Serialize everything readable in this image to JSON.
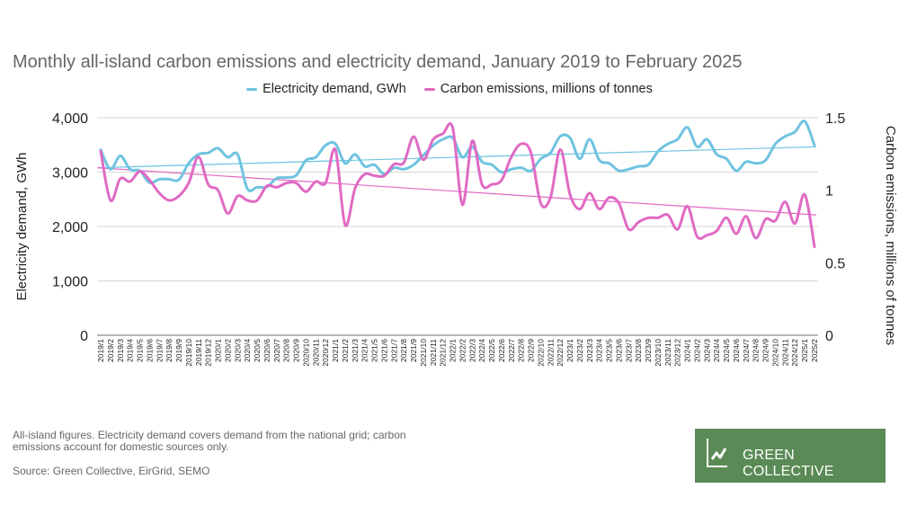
{
  "chart_data": {
    "type": "line",
    "title": "Monthly all-island carbon emissions and electricity demand, January 2019 to February 2025",
    "ylabel_left": "Electricity demand, GWh",
    "ylabel_right": "Carbon emissions, millions of tonnes",
    "ylim_left": [
      0,
      4000
    ],
    "ylim_right": [
      0,
      1.5
    ],
    "yticks_left": [
      "0",
      "1,000",
      "2,000",
      "3,000",
      "4,000"
    ],
    "yticks_right": [
      "0",
      "0.5",
      "1",
      "1.5"
    ],
    "grid": true,
    "legend_position": "top",
    "series": [
      {
        "name": "Electricity demand, GWh",
        "axis": "left",
        "color": "#6ec3e0",
        "values": [
          3410,
          3053,
          3300,
          3053,
          3025,
          2805,
          2870,
          2870,
          2860,
          3162,
          3327,
          3355,
          3438,
          3273,
          3327,
          2694,
          2722,
          2730,
          2887,
          2900,
          2942,
          3218,
          3273,
          3493,
          3520,
          3162,
          3327,
          3107,
          3135,
          2960,
          3080,
          3053,
          3135,
          3310,
          3490,
          3603,
          3630,
          3273,
          3465,
          3190,
          3135,
          2997,
          3053,
          3080,
          3025,
          3245,
          3355,
          3658,
          3630,
          3245,
          3603,
          3218,
          3162,
          3025,
          3053,
          3107,
          3135,
          3383,
          3520,
          3603,
          3823,
          3465,
          3603,
          3327,
          3245,
          3025,
          3190,
          3162,
          3218,
          3520,
          3658,
          3740,
          3934,
          3493
        ],
        "trend": [
          3080,
          3466
        ]
      },
      {
        "name": "Carbon emissions, millions of tonnes",
        "axis": "right",
        "color": "#e06ac4",
        "values": [
          1.27,
          0.93,
          1.08,
          1.06,
          1.13,
          1.07,
          0.98,
          0.93,
          0.96,
          1.05,
          1.23,
          1.04,
          1.0,
          0.84,
          0.96,
          0.93,
          0.93,
          1.03,
          1.02,
          1.05,
          1.05,
          0.99,
          1.06,
          1.05,
          1.28,
          0.76,
          1.01,
          1.11,
          1.1,
          1.1,
          1.18,
          1.19,
          1.37,
          1.21,
          1.35,
          1.39,
          1.43,
          0.9,
          1.34,
          1.04,
          1.04,
          1.07,
          1.23,
          1.32,
          1.26,
          0.91,
          0.95,
          1.28,
          0.97,
          0.87,
          0.98,
          0.87,
          0.95,
          0.91,
          0.73,
          0.78,
          0.81,
          0.81,
          0.83,
          0.73,
          0.89,
          0.68,
          0.69,
          0.72,
          0.81,
          0.7,
          0.82,
          0.67,
          0.8,
          0.79,
          0.92,
          0.77,
          0.97,
          0.61
        ],
        "trend": [
          1.155,
          0.83
        ]
      }
    ],
    "categories": [
      "2019/1",
      "2019/2",
      "2019/3",
      "2019/4",
      "2019/5",
      "2019/6",
      "2019/7",
      "2019/8",
      "2019/9",
      "2019/10",
      "2019/11",
      "2019/12",
      "2020/1",
      "2020/2",
      "2020/3",
      "2020/4",
      "2020/5",
      "2020/6",
      "2020/7",
      "2020/8",
      "2020/9",
      "2020/10",
      "2020/11",
      "2020/12",
      "2021/1",
      "2021/2",
      "2021/3",
      "2021/4",
      "2021/5",
      "2021/6",
      "2021/7",
      "2021/8",
      "2021/9",
      "2021/10",
      "2021/11",
      "2021/12",
      "2022/1",
      "2022/2",
      "2022/3",
      "2022/4",
      "2022/5",
      "2022/6",
      "2022/7",
      "2022/8",
      "2022/9",
      "2022/10",
      "2022/11",
      "2022/12",
      "2023/1",
      "2023/2",
      "2023/3",
      "2023/4",
      "2023/5",
      "2023/6",
      "2023/7",
      "2023/8",
      "2023/9",
      "2023/10",
      "2023/11",
      "2023/12",
      "2024/1",
      "2024/2",
      "2024/3",
      "2024/4",
      "2024/5",
      "2024/6",
      "2024/7",
      "2024/8",
      "2024/9",
      "2024/10",
      "2024/11",
      "2024/12",
      "2025/1",
      "2025/2"
    ]
  },
  "footer": {
    "note": "All-island figures. Electricity demand covers demand from the national grid; carbon emissions account for domestic sources only.",
    "source": "Source: Green Collective, EirGrid, SEMO"
  },
  "logo": {
    "text": "GREEN COLLECTIVE",
    "color": "#5a8a55"
  }
}
